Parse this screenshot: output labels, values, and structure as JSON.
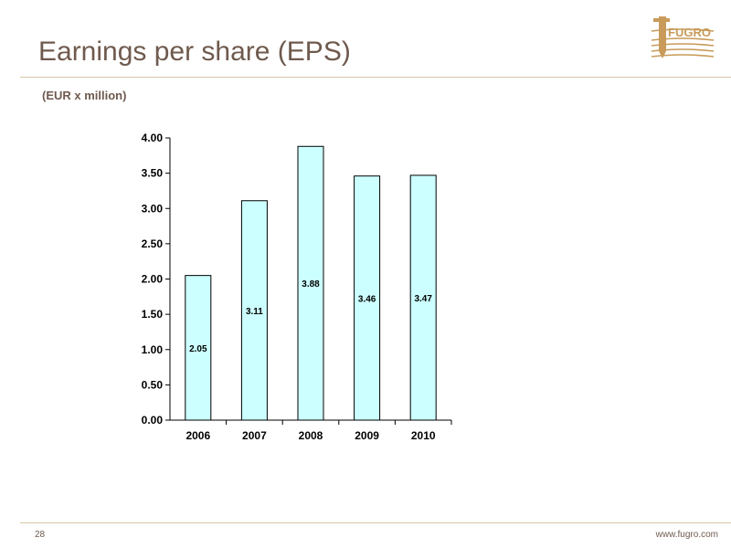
{
  "slide": {
    "title": "Earnings per share (EPS)",
    "page_number": "28",
    "url": "www.fugro.com",
    "logo_text": "FUGRO"
  },
  "colors": {
    "bar_fill": "#ccffff",
    "bar_stroke": "#000000",
    "title": "#6f5a4e",
    "rule": "#d8c9a8",
    "logo": "#c89b5a"
  },
  "chart_data": {
    "type": "bar",
    "title": "",
    "subtitle": "(EUR x million)",
    "xlabel": "",
    "ylabel": "",
    "categories": [
      "2006",
      "2007",
      "2008",
      "2009",
      "2010"
    ],
    "values": [
      2.05,
      3.11,
      3.88,
      3.46,
      3.47
    ],
    "value_labels": [
      "2.05",
      "3.11",
      "3.88",
      "3.46",
      "3.47"
    ],
    "ylim": [
      0,
      4
    ],
    "yticks": [
      "0.00",
      "0.50",
      "1.00",
      "1.50",
      "2.00",
      "2.50",
      "3.00",
      "3.50",
      "4.00"
    ],
    "grid": false,
    "legend": "none"
  }
}
